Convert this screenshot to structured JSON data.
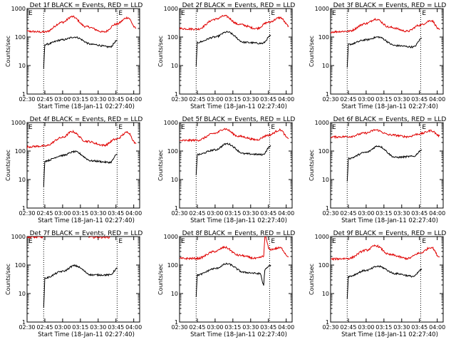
{
  "chart_data": [
    {
      "type": "line",
      "title": "Det 1f BLACK = Events, RED = LLD",
      "xlabel": "Start Time (18-Jan-11 02:27:40)",
      "ylabel": "Counts/sec",
      "marker": "E",
      "x_ticks": [
        "02:30",
        "02:45",
        "03:00",
        "03:15",
        "03:30",
        "03:45",
        "04:00"
      ],
      "y_ticks": [
        "1",
        "10",
        "100",
        "1000"
      ],
      "y_scale": "log",
      "ylim": [
        1,
        1000
      ],
      "xlim": [
        "02:30",
        "04:05"
      ],
      "vlines": [
        "02:44",
        "03:46"
      ],
      "series": [
        {
          "name": "LLD",
          "color": "#e00000",
          "x": [
            "02:27",
            "02:45",
            "03:00",
            "03:08",
            "03:20",
            "03:35",
            "03:45",
            "03:55",
            "04:02"
          ],
          "values": [
            160,
            150,
            330,
            520,
            230,
            150,
            280,
            480,
            200
          ]
        },
        {
          "name": "Events",
          "color": "#000000",
          "x": [
            "02:44",
            "02:45",
            "03:00",
            "03:10",
            "03:25",
            "03:40",
            "03:46"
          ],
          "values": [
            8,
            55,
            80,
            100,
            55,
            45,
            75
          ]
        }
      ]
    },
    {
      "type": "line",
      "title": "Det 2f BLACK = Events, RED = LLD",
      "xlabel": "Start Time (18-Jan-11 02:27:40)",
      "ylabel": "Counts/sec",
      "marker": "E",
      "x_ticks": [
        "02:30",
        "02:45",
        "03:00",
        "03:15",
        "03:30",
        "03:45",
        "04:00"
      ],
      "y_ticks": [
        "1",
        "10",
        "100",
        "1000"
      ],
      "y_scale": "log",
      "ylim": [
        1,
        1000
      ],
      "xlim": [
        "02:30",
        "04:05"
      ],
      "vlines": [
        "02:44",
        "03:46"
      ],
      "series": [
        {
          "name": "LLD",
          "color": "#e00000",
          "x": [
            "02:27",
            "02:45",
            "03:00",
            "03:08",
            "03:20",
            "03:35",
            "03:45",
            "03:55",
            "04:02"
          ],
          "values": [
            200,
            190,
            420,
            550,
            280,
            200,
            330,
            480,
            250
          ]
        },
        {
          "name": "Events",
          "color": "#000000",
          "x": [
            "02:44",
            "02:45",
            "03:00",
            "03:10",
            "03:25",
            "03:40",
            "03:47"
          ],
          "values": [
            9,
            65,
            100,
            150,
            65,
            60,
            110
          ]
        }
      ]
    },
    {
      "type": "line",
      "title": "Det 3f BLACK = Events, RED = LLD",
      "xlabel": "Start Time (18-Jan-11 02:27:40)",
      "ylabel": "Counts/sec",
      "marker": "E",
      "x_ticks": [
        "02:30",
        "02:45",
        "03:00",
        "03:15",
        "03:30",
        "03:45",
        "04:00"
      ],
      "y_ticks": [
        "1",
        "10",
        "100",
        "1000"
      ],
      "y_scale": "log",
      "ylim": [
        1,
        1000
      ],
      "xlim": [
        "02:30",
        "04:05"
      ],
      "vlines": [
        "02:44",
        "03:46"
      ],
      "series": [
        {
          "name": "LLD",
          "color": "#e00000",
          "x": [
            "02:27",
            "02:45",
            "03:00",
            "03:08",
            "03:20",
            "03:35",
            "03:45",
            "03:55",
            "04:02"
          ],
          "values": [
            150,
            160,
            300,
            430,
            220,
            160,
            260,
            380,
            180
          ]
        },
        {
          "name": "Events",
          "color": "#000000",
          "x": [
            "02:44",
            "02:45",
            "03:00",
            "03:10",
            "03:25",
            "03:40",
            "03:47"
          ],
          "values": [
            8,
            55,
            80,
            100,
            50,
            45,
            90
          ]
        }
      ]
    },
    {
      "type": "line",
      "title": "Det 4f BLACK = Events, RED = LLD",
      "xlabel": "Start Time (18-Jan-11 02:27:40)",
      "ylabel": "Counts/sec",
      "marker": "E",
      "x_ticks": [
        "02:30",
        "02:45",
        "03:00",
        "03:15",
        "03:30",
        "03:45",
        "04:00"
      ],
      "y_ticks": [
        "1",
        "10",
        "100",
        "1000"
      ],
      "y_scale": "log",
      "ylim": [
        1,
        1000
      ],
      "xlim": [
        "02:30",
        "04:05"
      ],
      "vlines": [
        "02:44",
        "03:46"
      ],
      "series": [
        {
          "name": "LLD",
          "color": "#e00000",
          "x": [
            "02:27",
            "02:45",
            "03:00",
            "03:08",
            "03:20",
            "03:35",
            "03:45",
            "03:55",
            "04:02"
          ],
          "values": [
            140,
            150,
            300,
            480,
            220,
            160,
            260,
            460,
            180
          ]
        },
        {
          "name": "Events",
          "color": "#000000",
          "x": [
            "02:44",
            "02:45",
            "03:00",
            "03:10",
            "03:25",
            "03:40",
            "03:46"
          ],
          "values": [
            6,
            45,
            70,
            95,
            45,
            40,
            75
          ]
        }
      ]
    },
    {
      "type": "line",
      "title": "Det 5f BLACK = Events, RED = LLD",
      "xlabel": "Start Time (18-Jan-11 02:27:40)",
      "ylabel": "Counts/sec",
      "marker": "E",
      "x_ticks": [
        "02:30",
        "02:45",
        "03:00",
        "03:15",
        "03:30",
        "03:45",
        "04:00"
      ],
      "y_ticks": [
        "1",
        "10",
        "100",
        "1000"
      ],
      "y_scale": "log",
      "ylim": [
        1,
        1000
      ],
      "xlim": [
        "02:30",
        "04:05"
      ],
      "vlines": [
        "02:44",
        "03:46"
      ],
      "series": [
        {
          "name": "LLD",
          "color": "#e00000",
          "x": [
            "02:27",
            "02:45",
            "03:00",
            "03:08",
            "03:20",
            "03:35",
            "03:45",
            "03:55",
            "04:02"
          ],
          "values": [
            230,
            240,
            420,
            600,
            330,
            250,
            360,
            550,
            270
          ]
        },
        {
          "name": "Events",
          "color": "#000000",
          "x": [
            "02:44",
            "02:45",
            "03:00",
            "03:10",
            "03:25",
            "03:40",
            "03:47"
          ],
          "values": [
            15,
            75,
            110,
            180,
            80,
            75,
            150
          ]
        }
      ]
    },
    {
      "type": "line",
      "title": "Det 6f BLACK = Events, RED = LLD",
      "xlabel": "Start Time (18-Jan-11 02:27:40)",
      "ylabel": "Counts/sec",
      "marker": "E",
      "x_ticks": [
        "02:30",
        "02:45",
        "03:00",
        "03:15",
        "03:30",
        "03:45",
        "04:00"
      ],
      "y_ticks": [
        "1",
        "10",
        "100",
        "1000"
      ],
      "y_scale": "log",
      "ylim": [
        1,
        1000
      ],
      "xlim": [
        "02:30",
        "04:05"
      ],
      "vlines": [
        "02:44",
        "03:46"
      ],
      "series": [
        {
          "name": "LLD",
          "color": "#e00000",
          "x": [
            "02:27",
            "02:45",
            "03:00",
            "03:08",
            "03:20",
            "03:35",
            "03:45",
            "03:55",
            "04:02"
          ],
          "values": [
            310,
            320,
            430,
            550,
            370,
            320,
            400,
            520,
            340
          ]
        },
        {
          "name": "Events",
          "color": "#000000",
          "x": [
            "02:44",
            "02:45",
            "03:00",
            "03:10",
            "03:25",
            "03:40",
            "03:47"
          ],
          "values": [
            8,
            55,
            90,
            150,
            60,
            65,
            110
          ]
        }
      ]
    },
    {
      "type": "line",
      "title": "Det 7f BLACK = Events, RED = LLD",
      "xlabel": "Start Time (18-Jan-11 02:27:40)",
      "ylabel": "Counts/sec",
      "marker": "E",
      "x_ticks": [
        "02:30",
        "02:45",
        "03:00",
        "03:15",
        "03:30",
        "03:45",
        "04:00"
      ],
      "y_ticks": [
        "1",
        "10",
        "100",
        "1000"
      ],
      "y_scale": "log",
      "ylim": [
        1,
        1000
      ],
      "xlim": [
        "02:30",
        "04:05"
      ],
      "vlines": [
        "02:44",
        "03:46"
      ],
      "series": [
        {
          "name": "LLD",
          "color": "#e00000",
          "x": [
            "02:27",
            "02:44",
            "02:46",
            "03:20",
            "03:22",
            "03:40"
          ],
          "values": [
            950,
            950,
            null,
            null,
            950,
            950
          ]
        },
        {
          "name": "Events",
          "color": "#000000",
          "x": [
            "02:44",
            "02:45",
            "03:00",
            "03:10",
            "03:25",
            "03:40",
            "03:46"
          ],
          "values": [
            3,
            35,
            60,
            95,
            45,
            45,
            75
          ]
        }
      ]
    },
    {
      "type": "line",
      "title": "Det 8f BLACK = Events, RED = LLD",
      "xlabel": "Start Time (18-Jan-11 02:27:40)",
      "ylabel": "Counts/sec",
      "marker": "E",
      "x_ticks": [
        "02:30",
        "02:45",
        "03:00",
        "03:15",
        "03:30",
        "03:45",
        "04:00"
      ],
      "y_ticks": [
        "1",
        "10",
        "100",
        "1000"
      ],
      "y_scale": "log",
      "ylim": [
        1,
        1000
      ],
      "xlim": [
        "02:30",
        "04:05"
      ],
      "vlines": [
        "02:44",
        "03:46"
      ],
      "series": [
        {
          "name": "LLD",
          "color": "#e00000",
          "x": [
            "02:27",
            "02:45",
            "03:00",
            "03:08",
            "03:20",
            "03:35",
            "03:41",
            "03:42",
            "03:46",
            "03:55",
            "04:02"
          ],
          "values": [
            170,
            170,
            300,
            420,
            220,
            170,
            200,
            1000,
            350,
            400,
            200
          ]
        },
        {
          "name": "Events",
          "color": "#000000",
          "x": [
            "02:44",
            "02:45",
            "03:00",
            "03:10",
            "03:25",
            "03:38",
            "03:41",
            "03:42",
            "03:47"
          ],
          "values": [
            8,
            45,
            75,
            110,
            55,
            50,
            20,
            70,
            100
          ]
        }
      ]
    },
    {
      "type": "line",
      "title": "Det 9f BLACK = Events, RED = LLD",
      "xlabel": "Start Time (18-Jan-11 02:27:40)",
      "ylabel": "Counts/sec",
      "marker": "E",
      "x_ticks": [
        "02:30",
        "02:45",
        "03:00",
        "03:15",
        "03:30",
        "03:45",
        "04:00"
      ],
      "y_ticks": [
        "1",
        "10",
        "100",
        "1000"
      ],
      "y_scale": "log",
      "ylim": [
        1,
        1000
      ],
      "xlim": [
        "02:30",
        "04:05"
      ],
      "vlines": [
        "02:44",
        "03:46"
      ],
      "series": [
        {
          "name": "LLD",
          "color": "#e00000",
          "x": [
            "02:27",
            "02:45",
            "03:00",
            "03:08",
            "03:20",
            "03:35",
            "03:45",
            "03:55",
            "04:02"
          ],
          "values": [
            160,
            170,
            330,
            480,
            230,
            170,
            260,
            420,
            190
          ]
        },
        {
          "name": "Events",
          "color": "#000000",
          "x": [
            "02:44",
            "02:45",
            "03:00",
            "03:10",
            "03:25",
            "03:40",
            "03:47"
          ],
          "values": [
            7,
            40,
            65,
            90,
            50,
            40,
            70
          ]
        }
      ]
    }
  ]
}
